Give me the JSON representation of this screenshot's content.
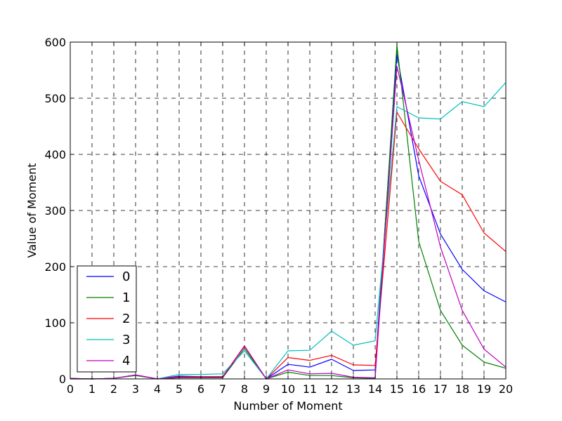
{
  "chart_data": {
    "type": "line",
    "title": "",
    "xlabel": "Number of Moment",
    "ylabel": "Value of Moment",
    "xlim": [
      0,
      20
    ],
    "ylim": [
      0,
      600
    ],
    "xticks": [
      0,
      1,
      2,
      3,
      4,
      5,
      6,
      7,
      8,
      9,
      10,
      11,
      12,
      13,
      14,
      15,
      16,
      17,
      18,
      19,
      20
    ],
    "yticks": [
      0,
      100,
      200,
      300,
      400,
      500,
      600
    ],
    "grid": true,
    "grid_style": "dashed",
    "legend_position": "lower-left",
    "x": [
      0,
      1,
      2,
      3,
      4,
      5,
      6,
      7,
      8,
      9,
      10,
      11,
      12,
      13,
      14,
      15,
      16,
      17,
      18,
      19,
      20
    ],
    "series": [
      {
        "name": "0",
        "color": "#0000ff",
        "values": [
          1,
          0,
          1,
          7,
          0,
          5,
          4,
          4,
          58,
          0,
          26,
          21,
          35,
          15,
          16,
          578,
          362,
          258,
          195,
          157,
          137
        ]
      },
      {
        "name": "1",
        "color": "#008000",
        "values": [
          0,
          0,
          1,
          6,
          0,
          2,
          2,
          2,
          54,
          0,
          12,
          6,
          6,
          2,
          1,
          595,
          245,
          122,
          60,
          30,
          19
        ]
      },
      {
        "name": "2",
        "color": "#ff0000",
        "values": [
          1,
          0,
          1,
          7,
          0,
          4,
          4,
          4,
          59,
          0,
          38,
          33,
          42,
          25,
          24,
          475,
          410,
          352,
          328,
          260,
          227
        ]
      },
      {
        "name": "3",
        "color": "#00bfbf",
        "values": [
          1,
          0,
          1,
          7,
          0,
          8,
          8,
          9,
          50,
          0,
          50,
          51,
          85,
          60,
          68,
          485,
          465,
          463,
          494,
          485,
          528
        ]
      },
      {
        "name": "4",
        "color": "#bf00bf",
        "values": [
          1,
          0,
          1,
          7,
          0,
          3,
          3,
          3,
          58,
          0,
          16,
          9,
          10,
          3,
          2,
          557,
          390,
          235,
          122,
          53,
          21
        ]
      }
    ]
  }
}
